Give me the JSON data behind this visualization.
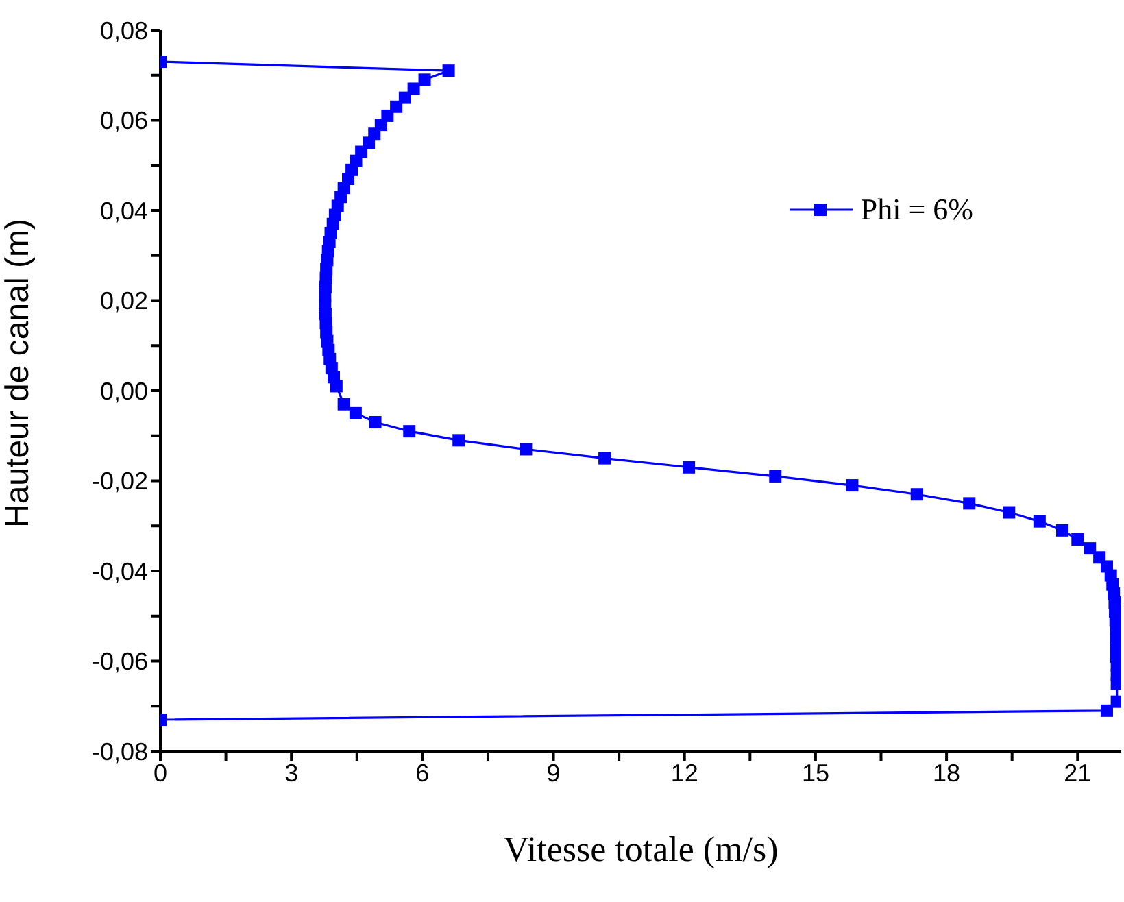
{
  "chart_data": {
    "type": "line",
    "xlabel": "Vitesse totale (m/s)",
    "ylabel": "Hauteur de canal (m)",
    "xlim": [
      0,
      22
    ],
    "xticks": [
      0,
      {
        "value": 1.5,
        "label": null
      },
      3,
      {
        "value": 4.5,
        "label": null
      },
      6,
      {
        "value": 7.5,
        "label": null
      },
      9,
      {
        "value": 10.5,
        "label": null
      },
      12,
      {
        "value": 13.5,
        "label": null
      },
      15,
      {
        "value": 16.5,
        "label": null
      },
      18,
      {
        "value": 19.5,
        "label": null
      },
      21
    ],
    "ylim": [
      -0.08,
      0.08
    ],
    "yticks": [
      {
        "value": -0.08,
        "label": "-0,08"
      },
      {
        "value": -0.07,
        "label": null
      },
      {
        "value": -0.06,
        "label": "-0,06"
      },
      {
        "value": -0.05,
        "label": null
      },
      {
        "value": -0.04,
        "label": "-0,04"
      },
      {
        "value": -0.03,
        "label": null
      },
      {
        "value": -0.02,
        "label": "-0,02"
      },
      {
        "value": -0.01,
        "label": null
      },
      {
        "value": 0,
        "label": "0,00"
      },
      {
        "value": 0.01,
        "label": null
      },
      {
        "value": 0.02,
        "label": "0,02"
      },
      {
        "value": 0.03,
        "label": null
      },
      {
        "value": 0.04,
        "label": "0,04"
      },
      {
        "value": 0.05,
        "label": null
      },
      {
        "value": 0.06,
        "label": "0,06"
      },
      {
        "value": 0.07,
        "label": null
      },
      {
        "value": 0.08,
        "label": "0,08"
      }
    ],
    "grid": false,
    "legend": "top right",
    "marker": "square",
    "line_style": "solid",
    "series": [
      {
        "name": "Phi = 6%",
        "color": "#0000ff",
        "x": [
          0,
          6.6,
          6.05,
          5.8,
          5.6,
          5.4,
          5.2,
          5.05,
          4.9,
          4.77,
          4.6,
          4.48,
          4.38,
          4.3,
          4.2,
          4.13,
          4.06,
          4.0,
          3.95,
          3.9,
          3.87,
          3.84,
          3.82,
          3.8,
          3.79,
          3.78,
          3.77,
          3.77,
          3.78,
          3.79,
          3.8,
          3.82,
          3.85,
          3.88,
          3.92,
          3.97,
          4.03,
          4.2,
          4.47,
          4.92,
          5.7,
          6.83,
          8.37,
          10.17,
          12.1,
          14.08,
          15.84,
          17.32,
          18.52,
          19.43,
          20.13,
          20.65,
          21.0,
          21.28,
          21.5,
          21.67,
          21.76,
          21.8,
          21.83,
          21.85,
          21.86,
          21.87,
          21.88,
          21.88,
          21.89,
          21.89,
          21.9,
          21.9,
          21.9,
          21.9,
          21.67,
          0
        ],
        "values": [
          0.073,
          0.071,
          0.069,
          0.067,
          0.065,
          0.063,
          0.061,
          0.059,
          0.057,
          0.055,
          0.053,
          0.051,
          0.049,
          0.047,
          0.045,
          0.043,
          0.041,
          0.039,
          0.037,
          0.035,
          0.033,
          0.031,
          0.029,
          0.027,
          0.025,
          0.023,
          0.021,
          0.019,
          0.017,
          0.015,
          0.013,
          0.011,
          0.009,
          0.007,
          0.005,
          0.003,
          0.001,
          -0.003,
          -0.005,
          -0.007,
          -0.009,
          -0.011,
          -0.013,
          -0.015,
          -0.017,
          -0.019,
          -0.021,
          -0.023,
          -0.025,
          -0.027,
          -0.029,
          -0.031,
          -0.033,
          -0.035,
          -0.037,
          -0.039,
          -0.041,
          -0.043,
          -0.045,
          -0.047,
          -0.049,
          -0.051,
          -0.053,
          -0.055,
          -0.057,
          -0.059,
          -0.061,
          -0.063,
          -0.065,
          -0.069,
          -0.071,
          -0.073
        ]
      }
    ]
  }
}
